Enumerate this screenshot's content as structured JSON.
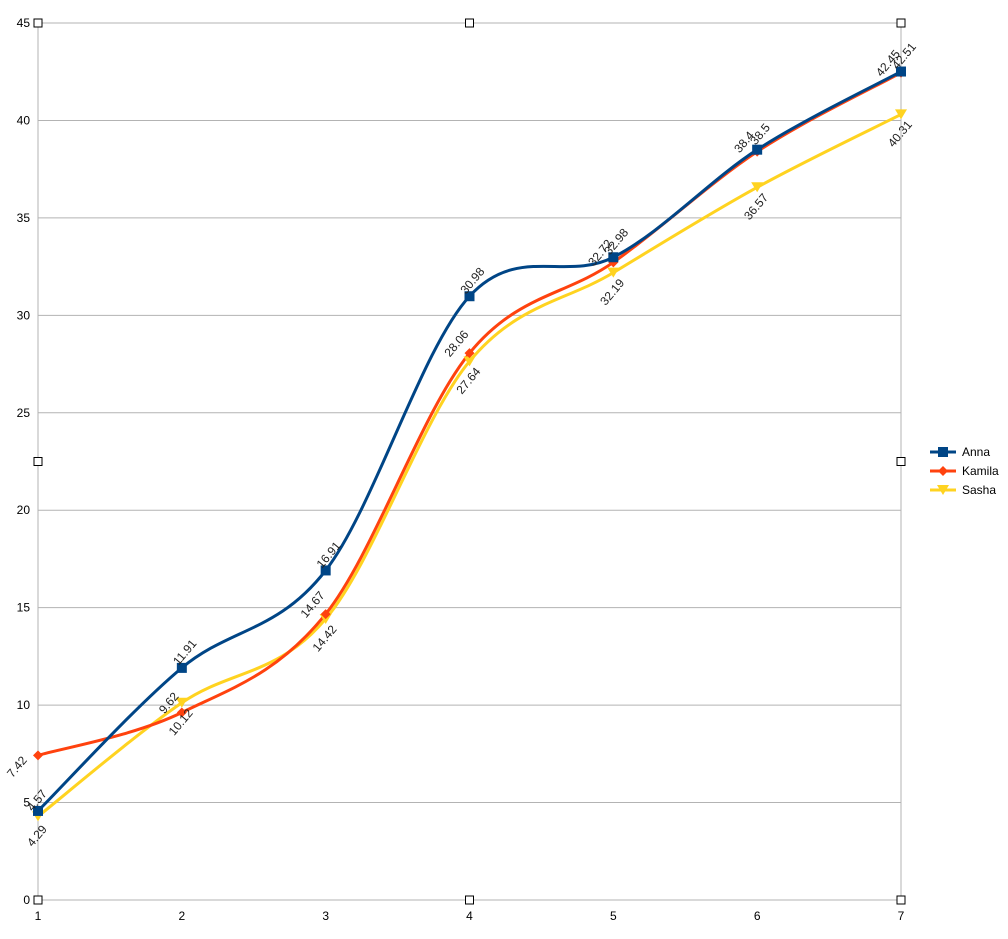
{
  "chart_data": {
    "type": "line",
    "title": "",
    "xlabel": "",
    "ylabel": "",
    "x": [
      1,
      2,
      3,
      4,
      5,
      6,
      7
    ],
    "ylim": [
      0,
      45
    ],
    "yticks": [
      0,
      5,
      10,
      15,
      20,
      25,
      30,
      35,
      40,
      45
    ],
    "grid": true,
    "legend": "right",
    "smooth": true,
    "data_labels": true,
    "series": [
      {
        "name": "Anna",
        "color": "#004586",
        "marker": "square",
        "values": [
          4.57,
          11.91,
          16.91,
          30.98,
          32.98,
          38.5,
          42.51
        ]
      },
      {
        "name": "Kamila",
        "color": "#ff420e",
        "marker": "diamond",
        "values": [
          7.42,
          9.62,
          14.67,
          28.06,
          32.72,
          38.4,
          42.45
        ]
      },
      {
        "name": "Sasha",
        "color": "#ffd320",
        "marker": "triangle-down",
        "values": [
          4.29,
          10.12,
          14.42,
          27.64,
          32.19,
          36.57,
          40.31
        ]
      }
    ]
  }
}
